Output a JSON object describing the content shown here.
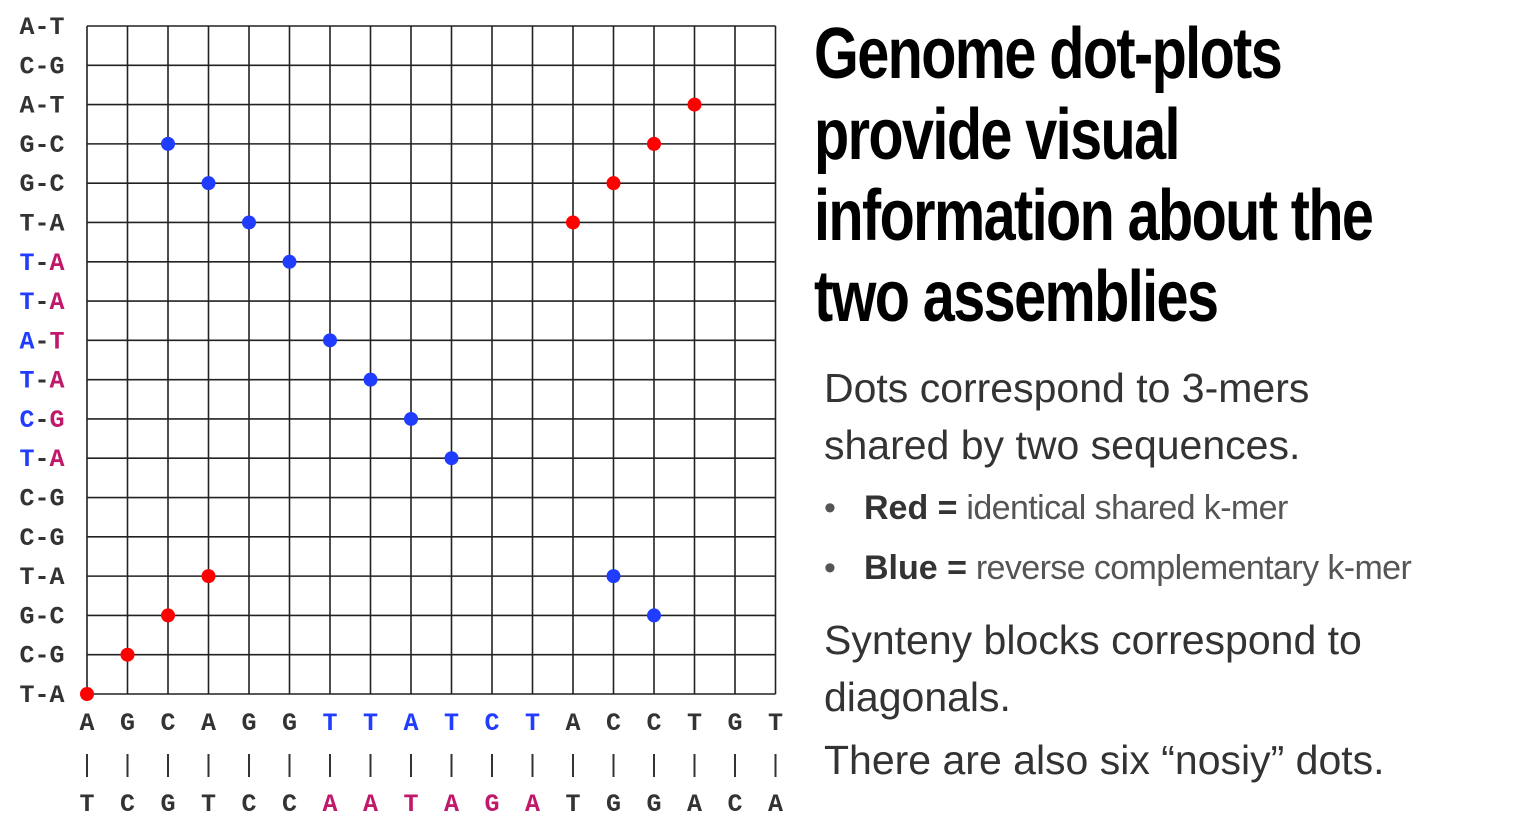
{
  "dotplot": {
    "colors": {
      "red": "#ff0000",
      "blue": "#1f3cff",
      "magenta": "#c0186a",
      "text": "#333333",
      "grid": "#222222"
    },
    "row_labels": [
      [
        "A-T",
        null
      ],
      [
        "C-G",
        null
      ],
      [
        "A-T",
        null
      ],
      [
        "G-C",
        null
      ],
      [
        "G-C",
        null
      ],
      [
        "T-A",
        null
      ],
      [
        "T-A",
        "hl"
      ],
      [
        "T-A",
        "hl"
      ],
      [
        "A-T",
        "hl"
      ],
      [
        "T-A",
        "hl"
      ],
      [
        "C-G",
        "hl"
      ],
      [
        "T-A",
        "hl"
      ],
      [
        "C-G",
        null
      ],
      [
        "C-G",
        null
      ],
      [
        "T-A",
        null
      ],
      [
        "G-C",
        null
      ],
      [
        "C-G",
        null
      ],
      [
        "T-A",
        null
      ]
    ],
    "top_sequence": [
      "A",
      "G",
      "C",
      "A",
      "G",
      "G",
      "T",
      "T",
      "A",
      "T",
      "C",
      "T",
      "A",
      "C",
      "C",
      "T",
      "G",
      "T"
    ],
    "complement_sequence": [
      "T",
      "C",
      "G",
      "T",
      "C",
      "C",
      "A",
      "A",
      "T",
      "A",
      "G",
      "A",
      "T",
      "G",
      "G",
      "A",
      "C",
      "A"
    ],
    "highlight_columns": [
      6,
      7,
      8,
      9,
      10,
      11
    ],
    "pair_symbol": "|",
    "red_dots": [
      [
        0,
        0
      ],
      [
        1,
        1
      ],
      [
        2,
        2
      ],
      [
        3,
        3
      ],
      [
        12,
        12
      ],
      [
        13,
        13
      ],
      [
        14,
        14
      ],
      [
        15,
        15
      ]
    ],
    "blue_dots": [
      [
        2,
        14
      ],
      [
        3,
        13
      ],
      [
        4,
        12
      ],
      [
        5,
        11
      ],
      [
        6,
        9
      ],
      [
        7,
        8
      ],
      [
        8,
        7
      ],
      [
        9,
        6
      ],
      [
        13,
        3
      ],
      [
        14,
        2
      ]
    ]
  },
  "title": [
    "Genome dot-plots",
    "provide visual",
    "information about the",
    "two assemblies"
  ],
  "description": {
    "line1": "Dots correspond to 3-mers",
    "line2": "shared by two sequences.",
    "bullets": [
      {
        "bold": "Red =",
        "text": " identical shared k-mer"
      },
      {
        "bold": "Blue =",
        "text": " reverse complementary k-mer"
      }
    ],
    "synteny1": "Synteny blocks correspond to",
    "synteny2": "diagonals.",
    "noise": "There are also six “nosiy” dots."
  }
}
